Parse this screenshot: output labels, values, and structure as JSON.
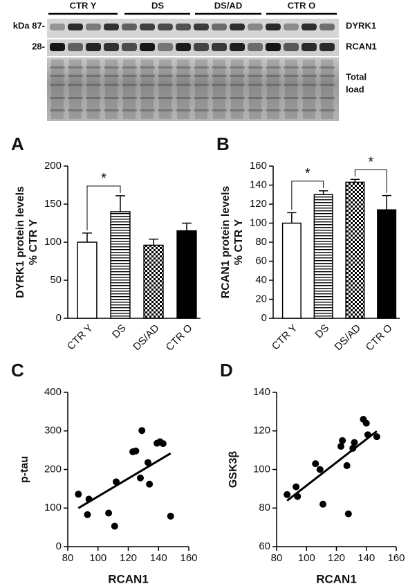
{
  "blot": {
    "groups": [
      "CTR Y",
      "DS",
      "DS/AD",
      "CTR O"
    ],
    "markers": [
      "kDa 87-",
      "28-"
    ],
    "bands": [
      "DYRK1",
      "RCAN1",
      "Total",
      "load"
    ]
  },
  "chart_data": [
    {
      "type": "bar",
      "panel": "A",
      "ylabel": [
        "DYRK1 protein levels",
        "% CTR Y"
      ],
      "categories": [
        "CTR Y",
        "DS",
        "DS/AD",
        "CTR O"
      ],
      "values": [
        100,
        140,
        96,
        115
      ],
      "errors": [
        12,
        21,
        8,
        10
      ],
      "patterns": [
        "white",
        "stripes",
        "checker",
        "black"
      ],
      "ylim": [
        0,
        200
      ],
      "yticks": [
        0,
        50,
        100,
        150,
        200
      ],
      "annotations": [
        {
          "text": "*",
          "from": 0,
          "to": 1
        }
      ]
    },
    {
      "type": "bar",
      "panel": "B",
      "ylabel": [
        "RCAN1 protein levels",
        "% CTR Y"
      ],
      "categories": [
        "CTR Y",
        "DS",
        "DS/AD",
        "CTR O"
      ],
      "values": [
        100,
        130,
        143,
        114
      ],
      "errors": [
        11,
        4,
        3,
        15
      ],
      "patterns": [
        "white",
        "stripes",
        "checker",
        "black"
      ],
      "ylim": [
        0,
        160
      ],
      "yticks": [
        0,
        20,
        40,
        60,
        80,
        100,
        120,
        140,
        160
      ],
      "annotations": [
        {
          "text": "*",
          "from": 0,
          "to": 1
        },
        {
          "text": "*",
          "from": 2,
          "to": 3
        }
      ]
    },
    {
      "type": "scatter",
      "panel": "C",
      "xlabel": "RCAN1",
      "ylabel": "p-tau",
      "x": [
        87,
        94,
        93,
        107,
        111,
        112,
        123,
        125,
        128,
        129,
        133,
        134,
        139,
        141,
        143,
        148
      ],
      "values": [
        136,
        123,
        83,
        87,
        53,
        168,
        246,
        248,
        178,
        301,
        218,
        162,
        268,
        272,
        267,
        79
      ],
      "color": "#000000",
      "trendline": true,
      "xlim": [
        80,
        160
      ],
      "xticks": [
        80,
        100,
        120,
        140,
        160
      ],
      "ylim": [
        0,
        400
      ],
      "yticks": [
        0,
        100,
        200,
        300,
        400
      ]
    },
    {
      "type": "scatter",
      "panel": "D",
      "xlabel": "RCAN1",
      "ylabel": "GSK3β",
      "x": [
        87,
        93,
        94,
        106,
        109,
        111,
        123,
        124,
        127,
        128,
        131,
        132,
        138,
        140,
        141,
        147
      ],
      "values": [
        87,
        91,
        86,
        103,
        100,
        82,
        112,
        115,
        102,
        77,
        111,
        114,
        126,
        124,
        118,
        117
      ],
      "color": "#000000",
      "trendline": true,
      "xlim": [
        80,
        160
      ],
      "xticks": [
        80,
        100,
        120,
        140,
        160
      ],
      "ylim": [
        60,
        140
      ],
      "yticks": [
        60,
        80,
        100,
        120,
        140
      ]
    }
  ]
}
